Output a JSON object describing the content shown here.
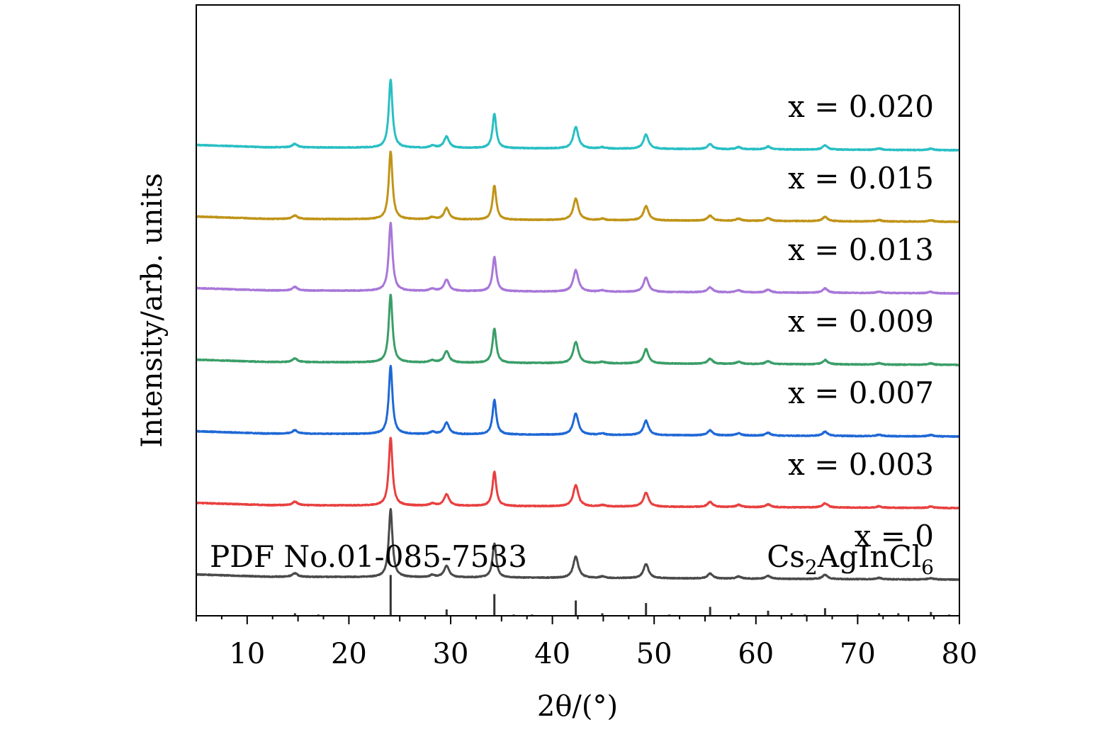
{
  "chart_data": {
    "type": "line",
    "title": "",
    "xlabel": "2θ/(°)",
    "ylabel": "Intensity/arb. units",
    "xlim": [
      5,
      80
    ],
    "xticks": [
      10,
      20,
      30,
      40,
      50,
      60,
      70,
      80
    ],
    "grid": false,
    "series": [
      {
        "name": "x = 0",
        "color": "#4a4a4a",
        "baseline": 0.55
      },
      {
        "name": "x = 0.003",
        "color": "#e8403f",
        "baseline": 1.55
      },
      {
        "name": "x = 0.007",
        "color": "#1f68d6",
        "baseline": 2.55
      },
      {
        "name": "x = 0.009",
        "color": "#3a9e68",
        "baseline": 3.55
      },
      {
        "name": "x = 0.013",
        "color": "#a877d8",
        "baseline": 4.55
      },
      {
        "name": "x = 0.015",
        "color": "#c09418",
        "baseline": 5.55
      },
      {
        "name": "x = 0.020",
        "color": "#28bfc4",
        "baseline": 6.55
      }
    ],
    "peaks": [
      {
        "x": 14.7,
        "h": 0.05
      },
      {
        "x": 24.1,
        "h": 0.95
      },
      {
        "x": 28.2,
        "h": 0.03
      },
      {
        "x": 29.6,
        "h": 0.16
      },
      {
        "x": 34.3,
        "h": 0.48
      },
      {
        "x": 42.3,
        "h": 0.3
      },
      {
        "x": 44.9,
        "h": 0.02
      },
      {
        "x": 49.2,
        "h": 0.2
      },
      {
        "x": 55.5,
        "h": 0.07
      },
      {
        "x": 58.3,
        "h": 0.03
      },
      {
        "x": 61.2,
        "h": 0.04
      },
      {
        "x": 66.8,
        "h": 0.06
      },
      {
        "x": 72.1,
        "h": 0.02
      },
      {
        "x": 77.2,
        "h": 0.02
      }
    ],
    "reference": {
      "label": "PDF No.01-085-7533",
      "compound_base": "Cs",
      "compound_sub1": "2",
      "compound_mid": "AgInCl",
      "compound_sub2": "6",
      "color": "#333333",
      "lines": [
        {
          "x": 14.7,
          "h": 0.02
        },
        {
          "x": 17.0,
          "h": 0.01
        },
        {
          "x": 24.1,
          "h": 0.32
        },
        {
          "x": 29.6,
          "h": 0.05
        },
        {
          "x": 34.3,
          "h": 0.17
        },
        {
          "x": 36.2,
          "h": 0.01
        },
        {
          "x": 38.0,
          "h": 0.01
        },
        {
          "x": 42.3,
          "h": 0.12
        },
        {
          "x": 44.9,
          "h": 0.02
        },
        {
          "x": 49.2,
          "h": 0.1
        },
        {
          "x": 51.5,
          "h": 0.01
        },
        {
          "x": 55.5,
          "h": 0.07
        },
        {
          "x": 58.3,
          "h": 0.02
        },
        {
          "x": 61.2,
          "h": 0.04
        },
        {
          "x": 63.5,
          "h": 0.02
        },
        {
          "x": 64.8,
          "h": 0.01
        },
        {
          "x": 66.8,
          "h": 0.06
        },
        {
          "x": 70.0,
          "h": 0.01
        },
        {
          "x": 72.1,
          "h": 0.02
        },
        {
          "x": 74.0,
          "h": 0.02
        },
        {
          "x": 77.2,
          "h": 0.03
        },
        {
          "x": 79.0,
          "h": 0.01
        }
      ]
    }
  }
}
